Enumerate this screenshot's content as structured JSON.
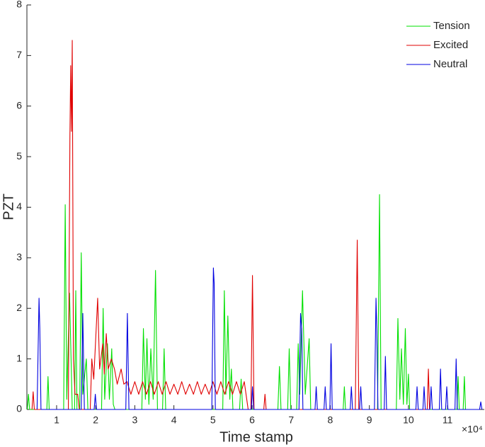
{
  "chart_data": {
    "type": "line",
    "x_label": "Time stamp",
    "y_label": "PZT",
    "x_multiplier": "×10⁴",
    "xlim": [
      0.24,
      11.94
    ],
    "xticks": [
      1,
      2,
      3,
      4,
      5,
      6,
      7,
      8,
      9,
      10,
      11
    ],
    "ylim": [
      0,
      8
    ],
    "yticks": [
      0,
      1,
      2,
      3,
      4,
      5,
      6,
      7,
      8
    ],
    "legend": "northeast",
    "grid": false,
    "series": [
      {
        "name": "Tension",
        "color": "#00e000",
        "x": [
          0.25,
          0.28,
          0.31,
          0.75,
          0.78,
          0.81,
          1.18,
          1.22,
          1.26,
          1.33,
          1.4,
          1.46,
          1.49,
          1.52,
          1.59,
          1.63,
          1.67,
          1.76,
          1.8,
          2.15,
          2.19,
          2.23,
          2.3,
          2.35,
          2.41,
          2.45,
          2.49,
          3.18,
          3.22,
          3.27,
          3.31,
          3.36,
          3.41,
          3.47,
          3.53,
          3.58,
          3.71,
          3.75,
          3.79,
          5.25,
          5.29,
          5.33,
          5.38,
          5.43,
          5.47,
          5.51,
          5.68,
          5.72,
          5.76,
          6.66,
          6.7,
          6.74,
          6.91,
          6.95,
          6.99,
          7.14,
          7.18,
          7.22,
          7.29,
          7.36,
          7.46,
          7.5,
          8.33,
          8.36,
          8.39,
          9.21,
          9.26,
          9.3,
          9.69,
          9.73,
          9.78,
          9.82,
          9.87,
          9.92,
          9.96,
          10.0,
          10.03,
          11.24,
          11.27,
          11.3,
          11.4,
          11.43,
          11.46
        ],
        "values": [
          0,
          0.3,
          0,
          0,
          0.65,
          0,
          0,
          4.05,
          0.2,
          2.3,
          0,
          0,
          2.35,
          0,
          0,
          3.1,
          0.3,
          1.0,
          0,
          0,
          2.0,
          0.2,
          1.3,
          0.2,
          1.2,
          0.1,
          0,
          0,
          1.6,
          0.2,
          1.4,
          0.1,
          1.2,
          0.2,
          2.75,
          0,
          0,
          1.2,
          0,
          0,
          2.35,
          0.3,
          1.85,
          0.2,
          0.8,
          0,
          0,
          0.6,
          0,
          0,
          0.85,
          0,
          0,
          1.2,
          0,
          0,
          1.3,
          0.3,
          2.35,
          0.3,
          1.4,
          0,
          0,
          0.45,
          0,
          0,
          4.25,
          0,
          0,
          1.8,
          0.2,
          1.2,
          0.1,
          1.6,
          0.1,
          0.7,
          0,
          0,
          0.65,
          0,
          0,
          0.65,
          0
        ]
      },
      {
        "name": "Excited",
        "color": "#e00000",
        "x": [
          0.37,
          0.4,
          0.43,
          1.3,
          1.34,
          1.36,
          1.38,
          1.4,
          1.43,
          1.47,
          1.54,
          1.58,
          1.86,
          1.9,
          1.95,
          2.05,
          2.1,
          2.18,
          2.22,
          2.27,
          2.32,
          2.4,
          2.48,
          2.55,
          2.65,
          2.72,
          2.8,
          2.9,
          3.0,
          3.1,
          3.2,
          3.3,
          3.4,
          3.5,
          3.6,
          3.7,
          3.8,
          3.9,
          4.0,
          4.1,
          4.2,
          4.3,
          4.4,
          4.5,
          4.6,
          4.7,
          4.8,
          4.9,
          5.0,
          5.1,
          5.2,
          5.3,
          5.4,
          5.5,
          5.6,
          5.7,
          5.8,
          5.9,
          5.97,
          6.01,
          6.05,
          6.3,
          6.33,
          6.36,
          8.64,
          8.69,
          8.73,
          10.48,
          10.51,
          10.54
        ],
        "values": [
          0,
          0.35,
          0,
          0,
          5.4,
          6.8,
          5.5,
          7.3,
          1.0,
          0.3,
          0.3,
          0,
          0,
          1.0,
          0.6,
          2.2,
          0.8,
          1.3,
          0.7,
          1.5,
          0.8,
          1.0,
          0.8,
          0.5,
          0.8,
          0.5,
          0.55,
          0.3,
          0.55,
          0.3,
          0.55,
          0.3,
          0.55,
          0.3,
          0.55,
          0.3,
          0.55,
          0.3,
          0.5,
          0.3,
          0.55,
          0.3,
          0.5,
          0.3,
          0.55,
          0.3,
          0.5,
          0.3,
          0.55,
          0.3,
          0.55,
          0.3,
          0.55,
          0.3,
          0.55,
          0.3,
          0.55,
          0,
          0,
          2.65,
          0,
          0,
          0.3,
          0,
          0,
          3.35,
          0,
          0,
          0.8,
          0
        ]
      },
      {
        "name": "Neutral",
        "color": "#0000e0",
        "x": [
          0.5,
          0.55,
          0.57,
          0.6,
          1.63,
          1.67,
          1.71,
          1.96,
          1.99,
          2.02,
          2.77,
          2.81,
          2.85,
          4.97,
          5.01,
          5.03,
          5.06,
          5.98,
          6.01,
          6.04,
          7.2,
          7.24,
          7.27,
          7.3,
          7.61,
          7.64,
          7.67,
          7.84,
          7.87,
          7.9,
          7.99,
          8.02,
          8.05,
          8.51,
          8.54,
          8.57,
          8.75,
          8.78,
          8.81,
          9.13,
          9.17,
          9.19,
          9.22,
          9.38,
          9.41,
          9.44,
          10.19,
          10.22,
          10.25,
          10.37,
          10.4,
          10.43,
          10.55,
          10.58,
          10.61,
          10.79,
          10.82,
          10.85,
          10.95,
          10.98,
          11.01,
          11.19,
          11.22,
          11.25,
          11.82,
          11.85,
          11.88
        ],
        "values": [
          0,
          2.2,
          1.6,
          0,
          0,
          1.9,
          0,
          0,
          0.3,
          0,
          0,
          1.9,
          0,
          0,
          2.8,
          2.5,
          0,
          0,
          0.45,
          0,
          0,
          1.9,
          1.6,
          0,
          0,
          0.45,
          0,
          0,
          0.45,
          0,
          0,
          1.3,
          0,
          0,
          0.45,
          0,
          0,
          0.45,
          0,
          0,
          2.2,
          1.6,
          0,
          0,
          1.05,
          0,
          0,
          0.45,
          0,
          0,
          0.45,
          0,
          0,
          0.45,
          0,
          0,
          0.8,
          0,
          0,
          0.45,
          0,
          0,
          1.0,
          0,
          0,
          0.15,
          0
        ]
      }
    ]
  }
}
